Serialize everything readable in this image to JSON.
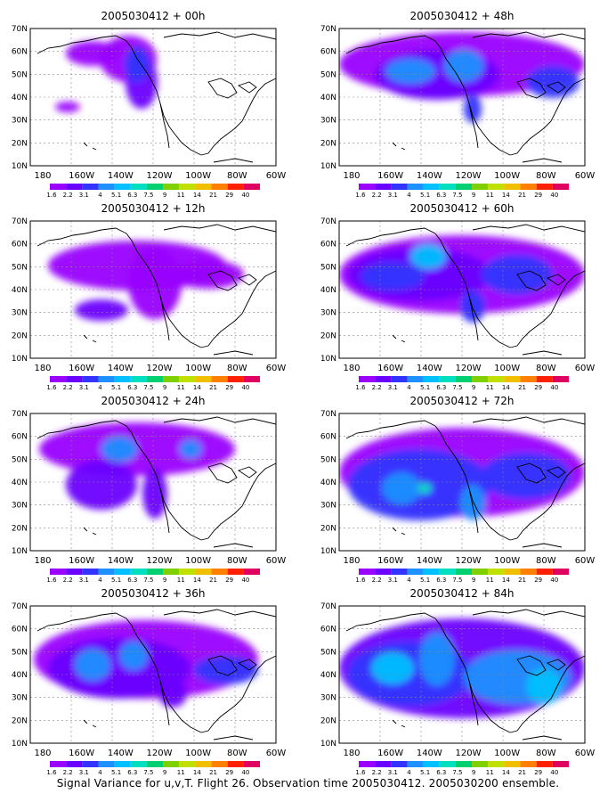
{
  "panels": [
    {
      "title": "2005030412 + 00h"
    },
    {
      "title": "2005030412 + 48h"
    },
    {
      "title": "2005030412 + 12h"
    },
    {
      "title": "2005030412 + 60h"
    },
    {
      "title": "2005030412 + 24h"
    },
    {
      "title": "2005030412 + 72h"
    },
    {
      "title": "2005030412 + 36h"
    },
    {
      "title": "2005030412 + 84h"
    }
  ],
  "lat_labels": [
    "70N",
    "60N",
    "50N",
    "40N",
    "30N",
    "20N",
    "10N"
  ],
  "lon_labels": [
    "180",
    "160W",
    "140W",
    "120W",
    "100W",
    "80W",
    "60W"
  ],
  "colorbar": {
    "labels": [
      "1.6",
      "2.2",
      "3.1",
      "4",
      "5.1",
      "6.3",
      "7.5",
      "9",
      "11",
      "14",
      "21",
      "29",
      "40"
    ],
    "colors": [
      "#9900ff",
      "#6a00ff",
      "#3333ff",
      "#1e90ff",
      "#00c0ff",
      "#00e0c0",
      "#00d070",
      "#80d000",
      "#c0e000",
      "#f0c000",
      "#ff8000",
      "#ff2000",
      "#e00060"
    ]
  },
  "caption": "Signal Variance for u,v,T. Flight 26. Observation time 2005030412. 2005030200 ensemble."
}
